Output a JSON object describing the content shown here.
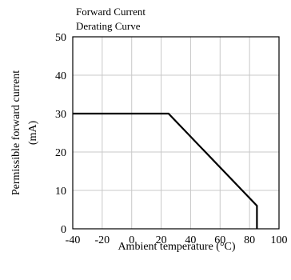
{
  "chart_data": {
    "type": "line",
    "title_lines": [
      "Forward Current",
      "Derating  Curve"
    ],
    "xlabel": "Ambient temperature (°C)",
    "ylabel_lines": [
      "Permissible forward current",
      "(mA)"
    ],
    "xlim": [
      -40,
      100
    ],
    "ylim": [
      0,
      50
    ],
    "x_ticks": [
      -40,
      -20,
      0,
      20,
      40,
      60,
      80,
      100
    ],
    "y_ticks": [
      0,
      10,
      20,
      30,
      40,
      50
    ],
    "grid": true,
    "series": [
      {
        "x": [
          -40,
          25,
          85,
          85
        ],
        "y": [
          30,
          30,
          6,
          0
        ],
        "color": "#000000"
      }
    ]
  }
}
